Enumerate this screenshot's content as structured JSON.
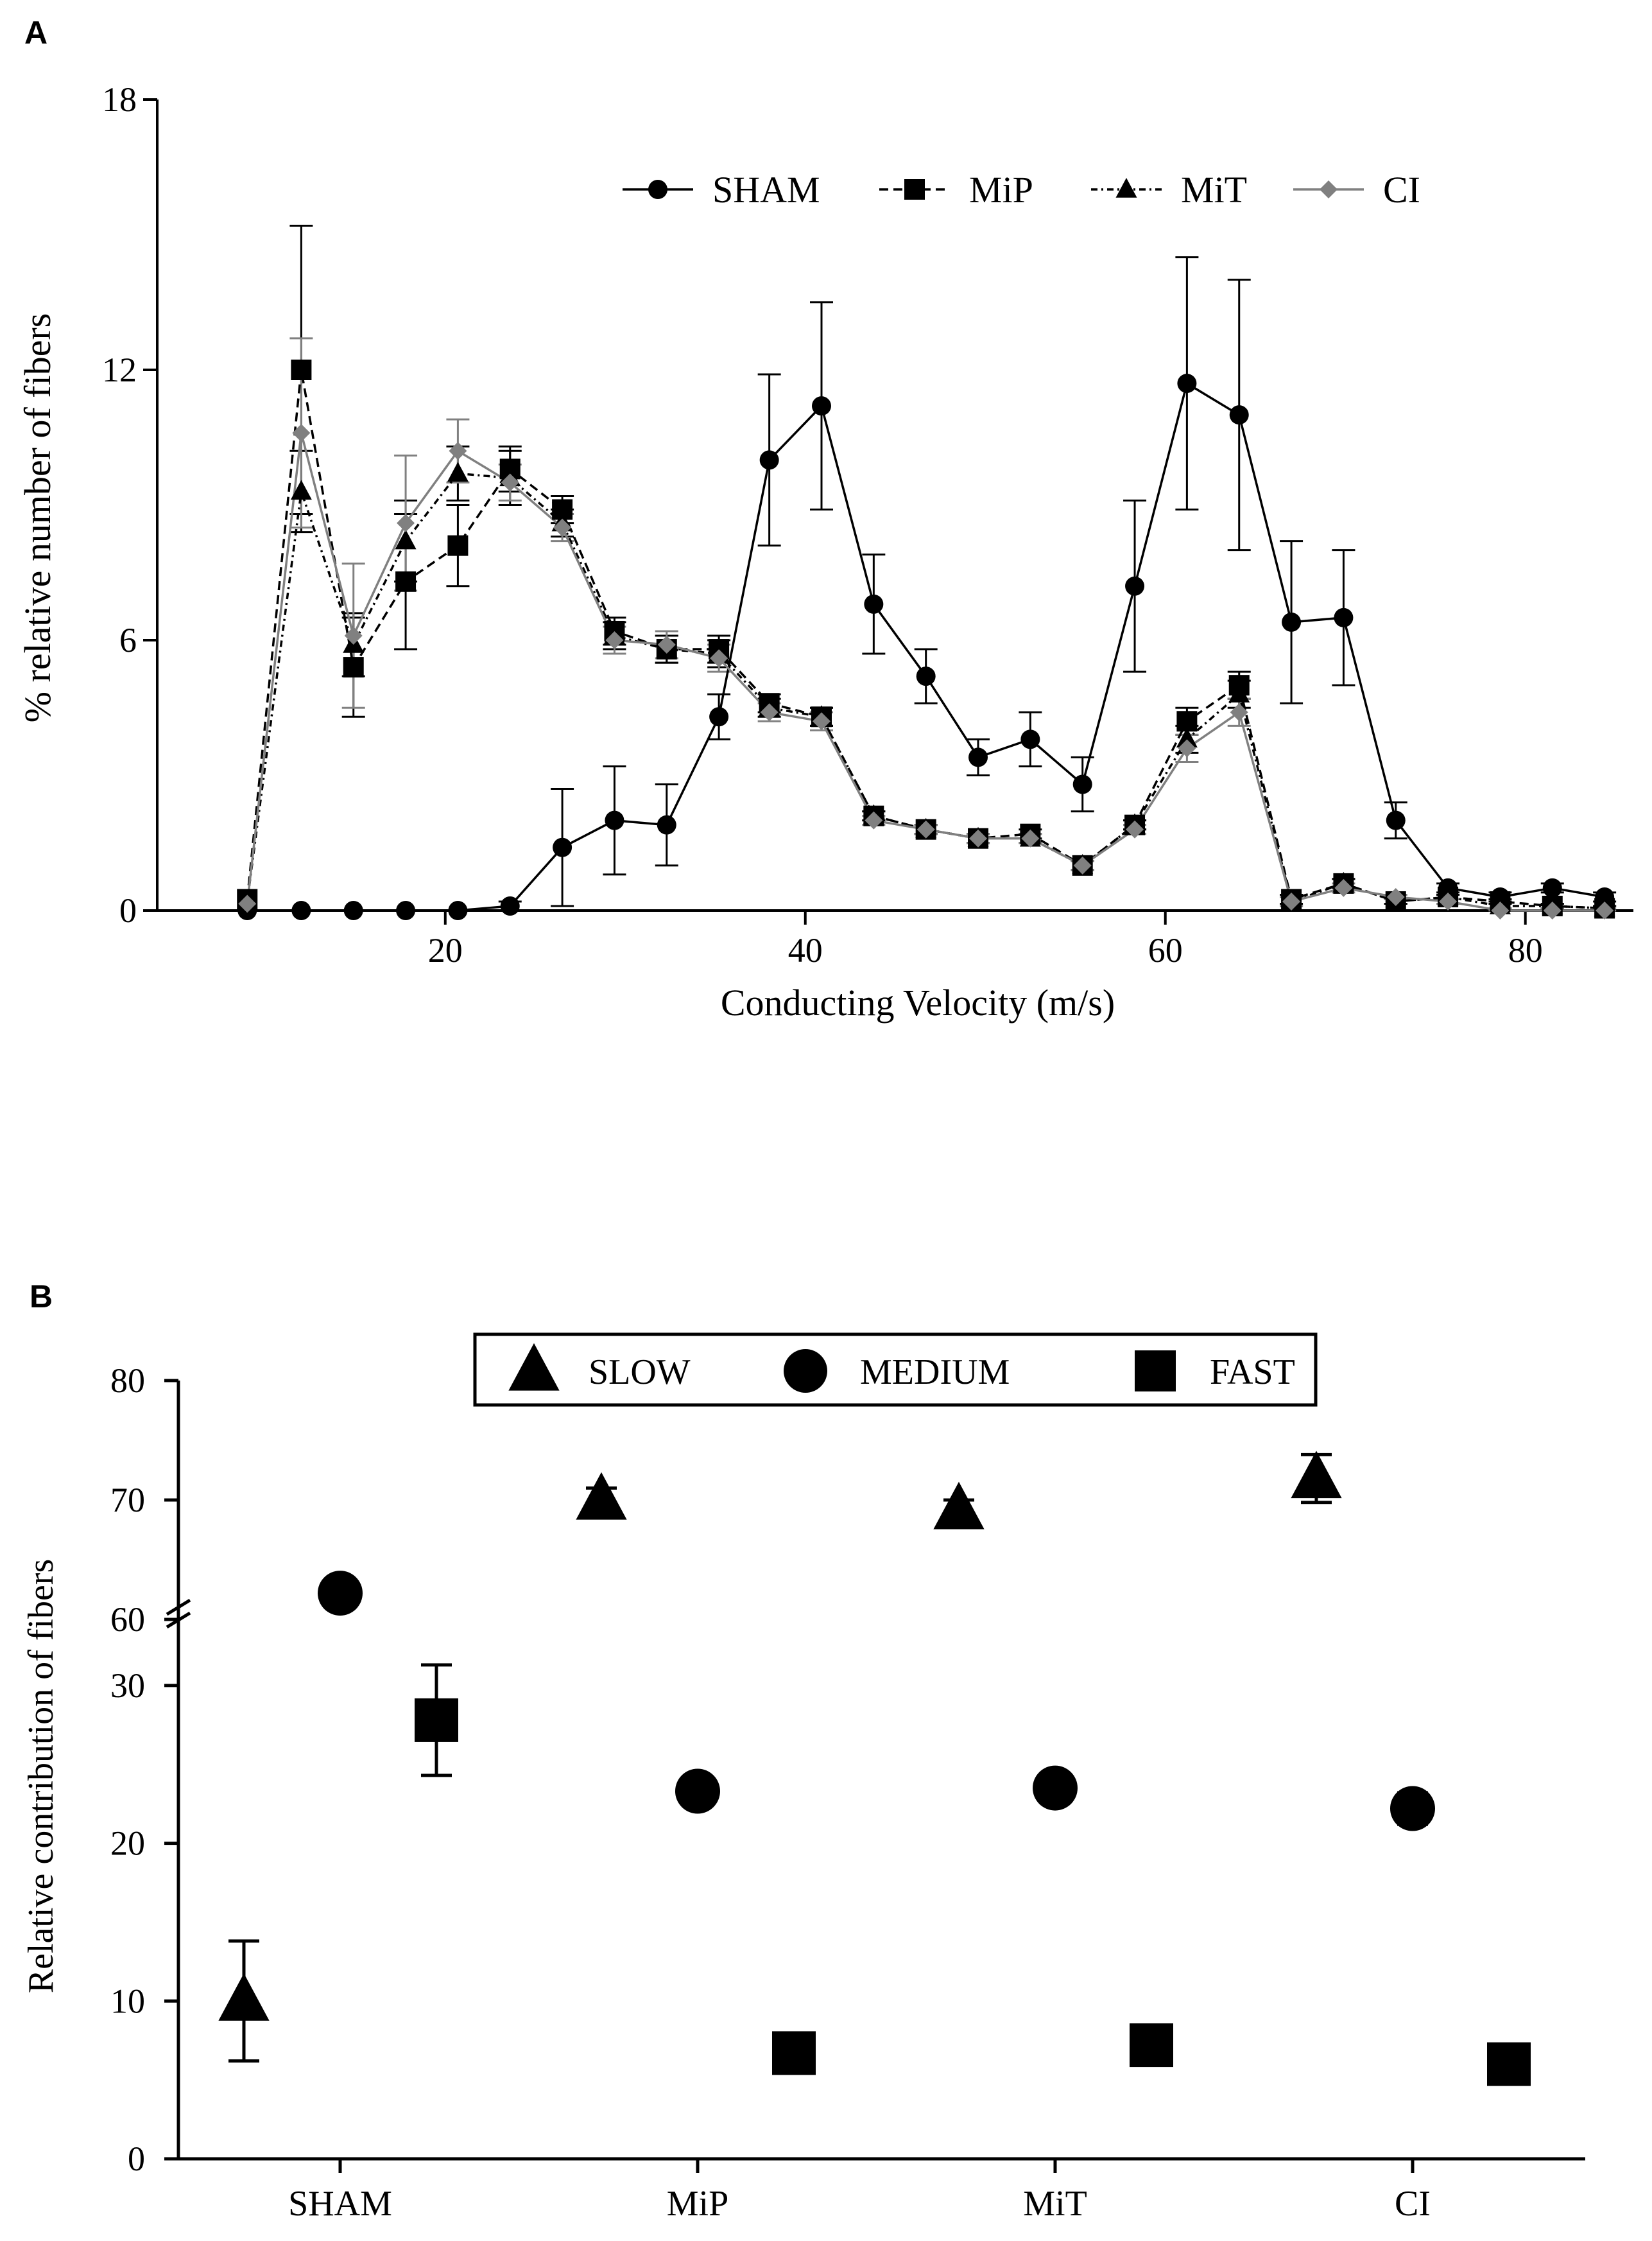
{
  "panels": {
    "a_label": "A",
    "b_label": "B"
  },
  "chart_data": [
    {
      "type": "line",
      "title": "",
      "xlabel": "Conducting Velocity (m/s)",
      "ylabel": "% relative number of fibers",
      "xlim": [
        4,
        86
      ],
      "ylim": [
        0,
        18
      ],
      "xticks": [
        20,
        40,
        60,
        80
      ],
      "xtick_labels": [
        "20",
        "40",
        "60",
        "80"
      ],
      "yticks": [
        0,
        6,
        12,
        18
      ],
      "ytick_labels": [
        "0",
        "6",
        "12",
        "18"
      ],
      "grid": false,
      "legend_position": "top-right",
      "x": [
        9.0,
        12.0,
        14.9,
        17.8,
        20.7,
        23.6,
        26.5,
        29.4,
        32.3,
        35.2,
        38.0,
        40.9,
        43.8,
        46.7,
        49.6,
        52.5,
        55.4,
        58.3,
        61.2,
        64.1,
        67.0,
        69.9,
        72.8,
        75.7,
        78.6,
        81.5,
        84.4
      ],
      "series": [
        {
          "name": "SHAM",
          "marker": "circle",
          "line": "solid",
          "color": "#000000",
          "values": [
            0,
            0,
            0,
            0,
            0,
            0.1,
            1.4,
            2.0,
            1.9,
            4.3,
            10.0,
            11.2,
            6.8,
            5.2,
            3.4,
            3.8,
            2.8,
            7.2,
            11.7,
            11.0,
            6.4,
            6.5,
            2.0,
            0.5,
            0.3,
            0.5,
            0.3
          ],
          "errors": [
            0,
            0,
            0,
            0,
            0,
            0.1,
            1.3,
            1.2,
            0.9,
            0.5,
            1.9,
            2.3,
            1.1,
            0.6,
            0.4,
            0.6,
            0.6,
            1.9,
            2.8,
            3.0,
            1.8,
            1.5,
            0.4,
            0.1,
            0.1,
            0.1,
            0.1
          ]
        },
        {
          "name": "MiP",
          "marker": "square",
          "line": "dashed",
          "color": "#000000",
          "values": [
            0.25,
            12.0,
            5.4,
            7.3,
            8.1,
            9.8,
            8.9,
            6.2,
            5.8,
            5.8,
            4.6,
            4.3,
            2.1,
            1.8,
            1.6,
            1.7,
            1.0,
            1.9,
            4.2,
            5.0,
            0.25,
            0.6,
            0.2,
            0.3,
            0.2,
            0.1,
            0.05
          ],
          "errors": [
            0,
            3.2,
            1.1,
            1.5,
            0.9,
            0.5,
            0.3,
            0.3,
            0.3,
            0.3,
            0.2,
            0.2,
            0.1,
            0.1,
            0.1,
            0.1,
            0.1,
            0.1,
            0.3,
            0.3,
            0.1,
            0.1,
            0.05,
            0.05,
            0.05,
            0.05,
            0.05
          ]
        },
        {
          "name": "MiT",
          "marker": "triangle",
          "line": "dashdot",
          "color": "#000000",
          "values": [
            0.2,
            9.3,
            5.9,
            8.2,
            9.7,
            9.6,
            8.6,
            6.1,
            5.8,
            5.7,
            4.5,
            4.3,
            2.1,
            1.8,
            1.6,
            1.6,
            1.0,
            1.9,
            3.8,
            4.8,
            0.2,
            0.6,
            0.2,
            0.3,
            0.1,
            0.1,
            0.05
          ],
          "errors": [
            0,
            0.9,
            0.7,
            0.9,
            0.6,
            0.6,
            0.3,
            0.3,
            0.3,
            0.3,
            0.2,
            0.2,
            0.1,
            0.1,
            0.1,
            0.1,
            0.1,
            0.1,
            0.3,
            0.3,
            0.1,
            0.1,
            0.05,
            0.05,
            0.05,
            0.05,
            0.05
          ]
        },
        {
          "name": "CI",
          "marker": "diamond",
          "line": "solid",
          "color": "#808080",
          "values": [
            0.15,
            10.6,
            6.1,
            8.6,
            10.2,
            9.5,
            8.5,
            6.0,
            5.9,
            5.6,
            4.4,
            4.2,
            2.0,
            1.8,
            1.6,
            1.6,
            1.0,
            1.8,
            3.6,
            4.4,
            0.2,
            0.5,
            0.3,
            0.2,
            0.0,
            0.0,
            0.0
          ],
          "errors": [
            0,
            2.1,
            1.6,
            1.5,
            0.7,
            0.4,
            0.3,
            0.3,
            0.3,
            0.3,
            0.2,
            0.2,
            0.1,
            0.1,
            0.1,
            0.1,
            0.1,
            0.1,
            0.3,
            0.3,
            0.1,
            0.1,
            0.05,
            0.05,
            0.05,
            0.05,
            0.05
          ]
        }
      ]
    },
    {
      "type": "scatter",
      "title": "",
      "xlabel": "",
      "ylabel": "Relative contribution of fibers",
      "categories": [
        "SHAM",
        "MiP",
        "MiT",
        "CI"
      ],
      "y_axis_break": true,
      "ylim_lower": [
        0,
        35
      ],
      "ylim_upper": [
        60,
        80
      ],
      "yticks_lower": [
        0,
        10,
        20,
        30
      ],
      "ytick_labels_lower": [
        "0",
        "10",
        "20",
        "30"
      ],
      "yticks_upper": [
        60,
        70,
        80
      ],
      "ytick_labels_upper": [
        "60",
        "70",
        "80"
      ],
      "grid": false,
      "legend_position": "top",
      "series": [
        {
          "name": "SLOW",
          "marker": "triangle",
          "values": [
            10.0,
            70.0,
            69.2,
            71.8
          ],
          "errors": [
            3.8,
            1.0,
            0.8,
            2.0
          ]
        },
        {
          "name": "MEDIUM",
          "marker": "circle",
          "values": [
            62.2,
            23.3,
            23.5,
            22.2
          ],
          "errors": [
            0,
            0,
            0,
            1.0
          ]
        },
        {
          "name": "FAST",
          "marker": "square",
          "values": [
            27.8,
            6.7,
            7.2,
            6.0
          ],
          "errors": [
            3.5,
            0,
            0,
            0
          ]
        }
      ]
    }
  ]
}
